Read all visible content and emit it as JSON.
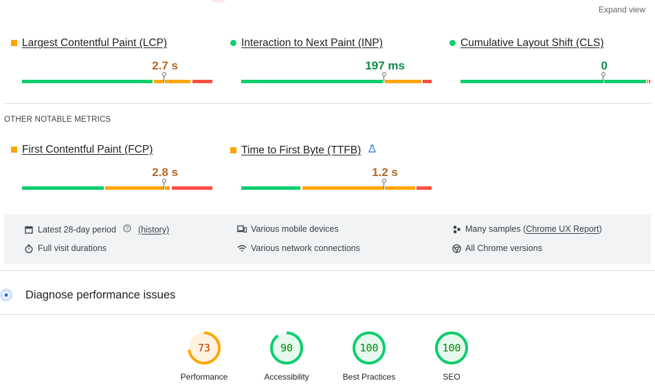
{
  "header": {
    "expand_label": "Expand view"
  },
  "core_metrics": [
    {
      "title": "Largest Contentful Paint (LCP)",
      "value": "2.7 s",
      "status": "needs-improvement"
    },
    {
      "title": "Interaction to Next Paint (INP)",
      "value": "197 ms",
      "status": "good"
    },
    {
      "title": "Cumulative Layout Shift (CLS)",
      "value": "0",
      "status": "good"
    }
  ],
  "other_section": {
    "label": "OTHER NOTABLE METRICS"
  },
  "other_metrics": [
    {
      "title": "First Contentful Paint (FCP)",
      "value": "2.8 s",
      "status": "needs-improvement"
    },
    {
      "title": "Time to First Byte (TTFB)",
      "value": "1.2 s",
      "status": "needs-improvement",
      "icon": "flask-icon"
    }
  ],
  "info": {
    "period": "Latest 28-day period",
    "history": "(history)",
    "devices": "Various mobile devices",
    "samples_prefix": "Many samples (",
    "samples_link": "Chrome UX Report",
    "samples_suffix": ")",
    "durations": "Full visit durations",
    "network": "Various network connections",
    "versions": "All Chrome versions"
  },
  "diagnose": {
    "title": "Diagnose performance issues"
  },
  "scores": [
    {
      "label": "Performance",
      "value": "73",
      "fraction": 0.73,
      "color": "#ffa400",
      "text_color": "#c33300",
      "bg": "#fff3e0"
    },
    {
      "label": "Accessibility",
      "value": "90",
      "fraction": 0.9,
      "color": "#0cce6b",
      "text_color": "#008800",
      "bg": "#e6f9ef"
    },
    {
      "label": "Best Practices",
      "value": "100",
      "fraction": 1.0,
      "color": "#0cce6b",
      "text_color": "#008800",
      "bg": "#e6f9ef"
    },
    {
      "label": "SEO",
      "value": "100",
      "fraction": 1.0,
      "color": "#0cce6b",
      "text_color": "#008800",
      "bg": "#e6f9ef"
    }
  ],
  "colors": {
    "good": "#0cce6b",
    "average": "#ffa400",
    "poor": "#ff4e42",
    "accent_blue": "#1a73e8"
  }
}
